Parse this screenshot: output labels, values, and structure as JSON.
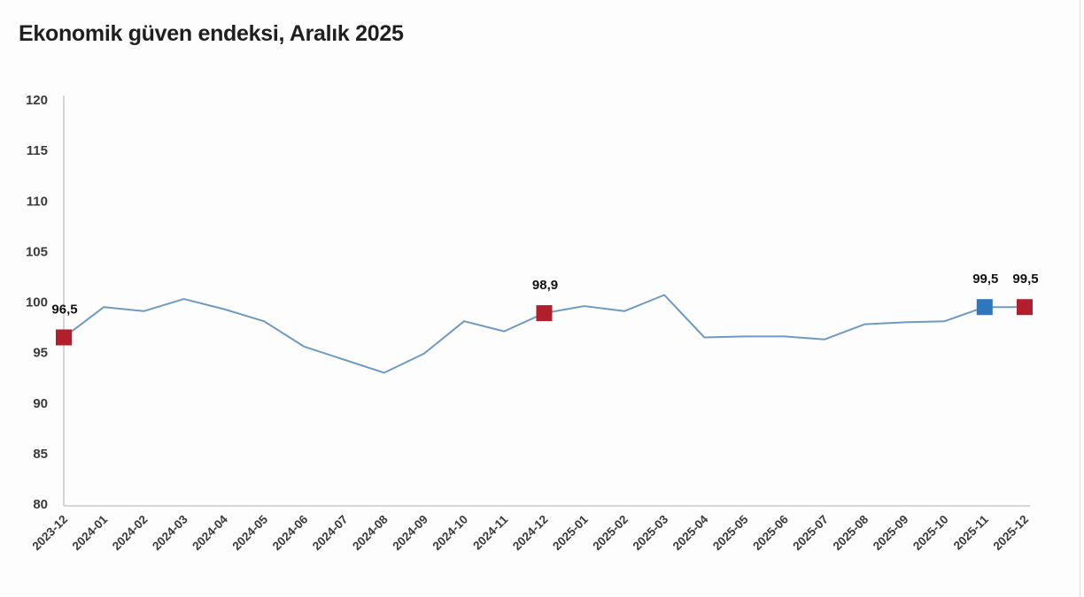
{
  "title": "Ekonomik güven endeksi, Aralık 2025",
  "colors": {
    "line": "#6e9ac0",
    "marker_red": "#b11f2d",
    "marker_blue": "#2e77bd",
    "axis_line": "#c9c9c9",
    "tick_text": "#3a3a3a",
    "title_text": "#1f1f1f",
    "point_label_text": "#111111",
    "background": "#fdfdfd",
    "frame_edge": "#dcdcdc"
  },
  "chart_data": {
    "type": "line",
    "title": "Ekonomik güven endeksi, Aralık 2025",
    "xlabel": "",
    "ylabel": "",
    "ylim": [
      80,
      120
    ],
    "ytick_step": 5,
    "grid": false,
    "legend": "none",
    "x_label_rotation": -45,
    "categories": [
      "2023-12",
      "2024-01",
      "2024-02",
      "2024-03",
      "2024-04",
      "2024-05",
      "2024-06",
      "2024-07",
      "2024-08",
      "2024-09",
      "2024-10",
      "2024-11",
      "2024-12",
      "2025-01",
      "2025-02",
      "2025-03",
      "2025-04",
      "2025-05",
      "2025-06",
      "2025-07",
      "2025-08",
      "2025-09",
      "2025-10",
      "2025-11",
      "2025-12"
    ],
    "values": [
      96.5,
      99.5,
      99.1,
      100.3,
      99.3,
      98.1,
      95.6,
      94.3,
      93.0,
      94.9,
      98.1,
      97.1,
      98.9,
      99.6,
      99.1,
      100.7,
      96.5,
      96.6,
      96.6,
      96.3,
      97.8,
      98.0,
      98.1,
      99.5,
      99.5
    ],
    "highlighted_points": [
      {
        "index": 0,
        "category": "2023-12",
        "label": "96,5",
        "color_key": "marker_red"
      },
      {
        "index": 12,
        "category": "2024-12",
        "label": "98,9",
        "color_key": "marker_red"
      },
      {
        "index": 23,
        "category": "2025-11",
        "label": "99,5",
        "color_key": "marker_blue"
      },
      {
        "index": 24,
        "category": "2025-12",
        "label": "99,5",
        "color_key": "marker_red"
      }
    ]
  }
}
